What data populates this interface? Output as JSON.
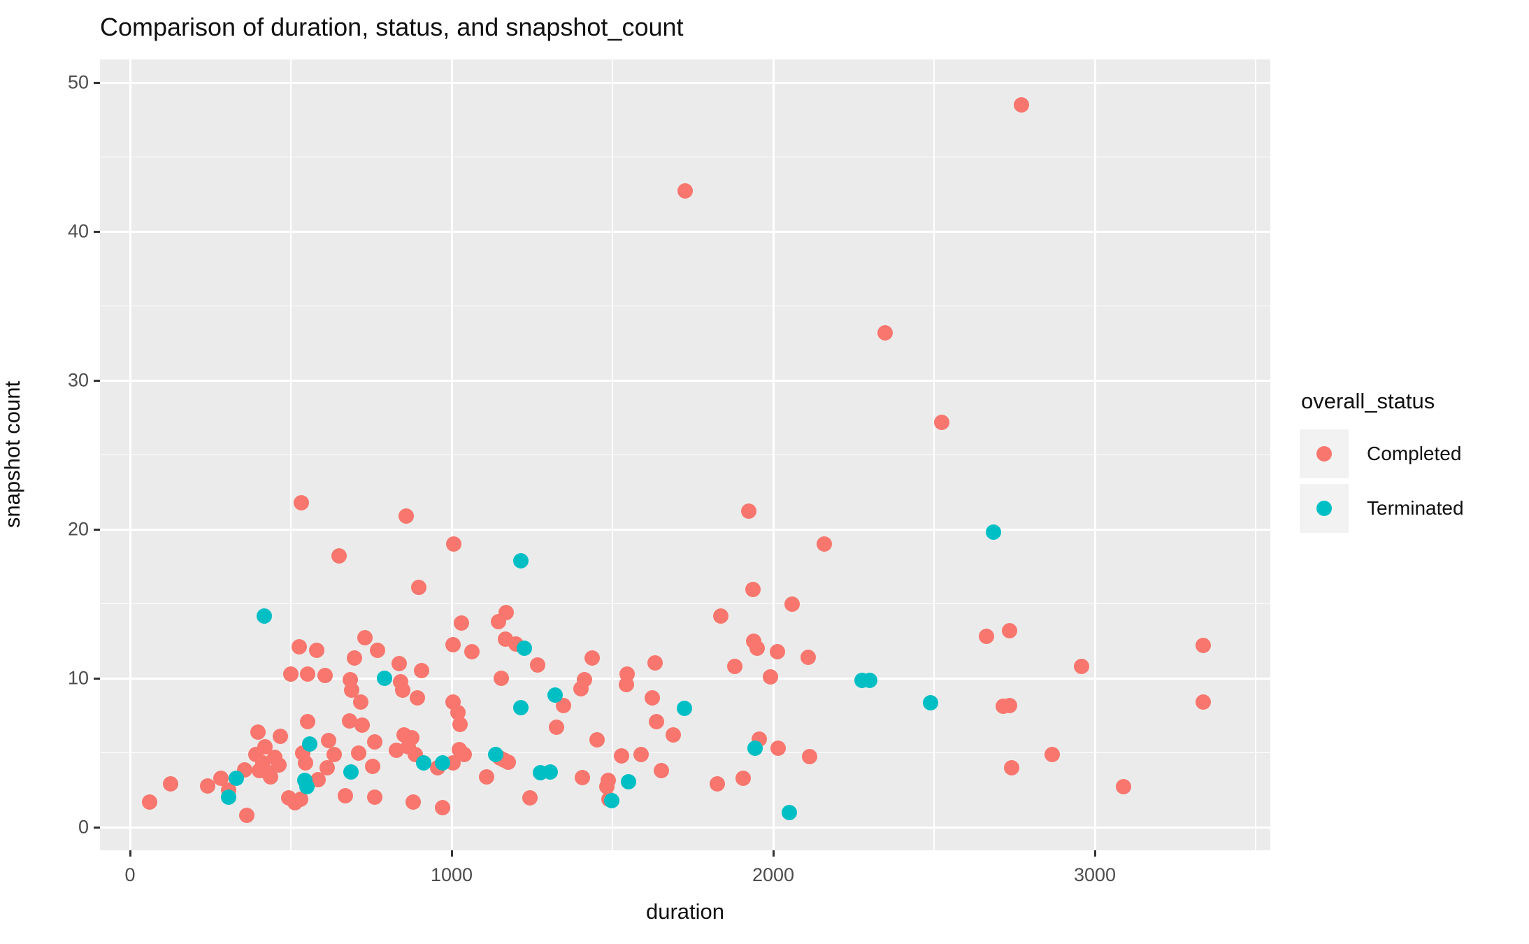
{
  "chart_data": {
    "type": "scatter",
    "title": "Comparison of duration, status, and snapshot_count",
    "xlabel": "duration",
    "ylabel": "snapshot count",
    "legend_title": "overall_status",
    "legend_position": "right",
    "grid": "on",
    "panel_bg": "#EBEBEB",
    "grid_color": "#FFFFFF",
    "tick_label_color": "#4D4D4D",
    "x_ticks": [
      0,
      1000,
      2000,
      3000
    ],
    "y_ticks": [
      0,
      10,
      20,
      30,
      40,
      50
    ],
    "x_minor": [
      500,
      1500,
      2500,
      3500
    ],
    "y_minor": [
      5,
      15,
      25,
      35,
      45
    ],
    "xlim": [
      -93,
      3546
    ],
    "ylim": [
      -1.55,
      51.5
    ],
    "series": [
      {
        "name": "Completed",
        "color": "#F8766D",
        "points": [
          [
            61,
            1.7
          ],
          [
            125,
            2.9
          ],
          [
            242,
            2.75
          ],
          [
            282,
            3.3
          ],
          [
            307,
            2.5
          ],
          [
            357,
            3.85
          ],
          [
            362,
            0.8
          ],
          [
            391,
            4.9
          ],
          [
            398,
            6.4
          ],
          [
            402,
            3.8
          ],
          [
            413,
            4.3
          ],
          [
            420,
            5.4
          ],
          [
            425,
            3.7
          ],
          [
            438,
            3.4
          ],
          [
            451,
            4.7
          ],
          [
            464,
            4.2
          ],
          [
            467,
            6.1
          ],
          [
            493,
            1.95
          ],
          [
            501,
            10.3
          ],
          [
            514,
            1.65
          ],
          [
            527,
            12.1
          ],
          [
            530,
            1.9
          ],
          [
            533,
            21.8
          ],
          [
            536,
            5.0
          ],
          [
            546,
            4.3
          ],
          [
            552,
            10.3
          ],
          [
            552,
            7.1
          ],
          [
            580,
            11.9
          ],
          [
            585,
            3.2
          ],
          [
            607,
            10.2
          ],
          [
            612,
            4.0
          ],
          [
            617,
            5.8
          ],
          [
            635,
            4.9
          ],
          [
            649,
            18.2
          ],
          [
            670,
            2.1
          ],
          [
            683,
            7.15
          ],
          [
            684,
            9.9
          ],
          [
            690,
            9.2
          ],
          [
            697,
            11.35
          ],
          [
            711,
            5.0
          ],
          [
            718,
            8.4
          ],
          [
            722,
            6.85
          ],
          [
            730,
            12.7
          ],
          [
            755,
            4.1
          ],
          [
            761,
            5.75
          ],
          [
            761,
            2.0
          ],
          [
            770,
            11.9
          ],
          [
            829,
            5.15
          ],
          [
            836,
            11.0
          ],
          [
            842,
            9.75
          ],
          [
            848,
            9.2
          ],
          [
            853,
            6.2
          ],
          [
            858,
            20.9
          ],
          [
            865,
            5.4
          ],
          [
            875,
            6.0
          ],
          [
            880,
            1.7
          ],
          [
            888,
            4.9
          ],
          [
            894,
            8.7
          ],
          [
            897,
            16.1
          ],
          [
            906,
            10.5
          ],
          [
            956,
            4.0
          ],
          [
            971,
            1.3
          ],
          [
            1004,
            12.25
          ],
          [
            1004,
            8.4
          ],
          [
            1005,
            4.3
          ],
          [
            1007,
            19.0
          ],
          [
            1020,
            7.7
          ],
          [
            1023,
            5.2
          ],
          [
            1025,
            6.9
          ],
          [
            1030,
            13.7
          ],
          [
            1039,
            4.9
          ],
          [
            1063,
            11.8
          ],
          [
            1108,
            3.4
          ],
          [
            1146,
            13.8
          ],
          [
            1150,
            4.65
          ],
          [
            1155,
            10.0
          ],
          [
            1163,
            4.5
          ],
          [
            1167,
            12.65
          ],
          [
            1170,
            14.4
          ],
          [
            1177,
            4.35
          ],
          [
            1199,
            12.3
          ],
          [
            1243,
            1.95
          ],
          [
            1268,
            10.9
          ],
          [
            1326,
            6.7
          ],
          [
            1347,
            8.15
          ],
          [
            1403,
            9.3
          ],
          [
            1406,
            3.35
          ],
          [
            1413,
            9.9
          ],
          [
            1436,
            11.35
          ],
          [
            1452,
            5.85
          ],
          [
            1482,
            2.7
          ],
          [
            1488,
            3.15
          ],
          [
            1490,
            1.9
          ],
          [
            1529,
            4.8
          ],
          [
            1543,
            9.6
          ],
          [
            1545,
            10.3
          ],
          [
            1590,
            4.9
          ],
          [
            1624,
            8.7
          ],
          [
            1632,
            11.05
          ],
          [
            1637,
            7.1
          ],
          [
            1653,
            3.8
          ],
          [
            1690,
            6.2
          ],
          [
            1726,
            42.7
          ],
          [
            1827,
            2.9
          ],
          [
            1836,
            14.2
          ],
          [
            1880,
            10.8
          ],
          [
            1907,
            3.3
          ],
          [
            1923,
            21.2
          ],
          [
            1938,
            15.95
          ],
          [
            1939,
            12.5
          ],
          [
            1949,
            12.0
          ],
          [
            1957,
            5.9
          ],
          [
            1992,
            10.1
          ],
          [
            2014,
            11.8
          ],
          [
            2016,
            5.3
          ],
          [
            2059,
            15.0
          ],
          [
            2108,
            11.4
          ],
          [
            2114,
            4.75
          ],
          [
            2158,
            19.0
          ],
          [
            2348,
            33.2
          ],
          [
            2524,
            27.2
          ],
          [
            2664,
            12.8
          ],
          [
            2715,
            8.1
          ],
          [
            2735,
            13.2
          ],
          [
            2735,
            8.15
          ],
          [
            2742,
            4.0
          ],
          [
            2772,
            48.5
          ],
          [
            2868,
            4.9
          ],
          [
            2959,
            10.8
          ],
          [
            3090,
            2.7
          ],
          [
            3337,
            12.2
          ],
          [
            3338,
            8.4
          ]
        ]
      },
      {
        "name": "Terminated",
        "color": "#00BFC4",
        "points": [
          [
            306,
            2.0
          ],
          [
            330,
            3.3
          ],
          [
            417,
            14.2
          ],
          [
            543,
            3.15
          ],
          [
            549,
            2.7
          ],
          [
            559,
            5.6
          ],
          [
            688,
            3.7
          ],
          [
            791,
            10.0
          ],
          [
            913,
            4.3
          ],
          [
            972,
            4.3
          ],
          [
            1136,
            4.9
          ],
          [
            1215,
            17.9
          ],
          [
            1215,
            8.05
          ],
          [
            1226,
            12.0
          ],
          [
            1277,
            3.65
          ],
          [
            1307,
            3.7
          ],
          [
            1322,
            8.85
          ],
          [
            1498,
            1.8
          ],
          [
            1551,
            3.05
          ],
          [
            1724,
            8.0
          ],
          [
            1943,
            5.3
          ],
          [
            2051,
            1.0
          ],
          [
            2276,
            9.85
          ],
          [
            2300,
            9.85
          ],
          [
            2490,
            8.35
          ],
          [
            2684,
            19.8
          ]
        ]
      }
    ]
  }
}
